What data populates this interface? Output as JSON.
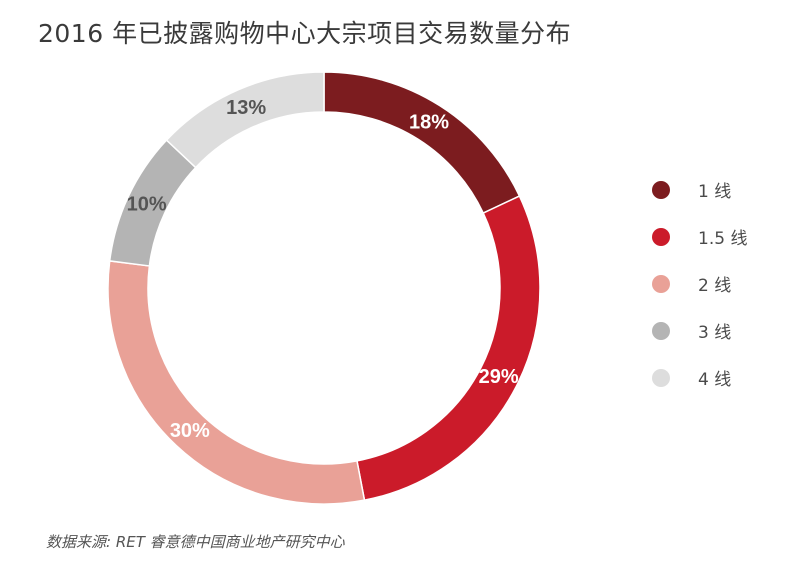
{
  "title": "2016 年已披露购物中心大宗项目交易数量分布",
  "source": "数据来源: RET 睿意德中国商业地产研究中心",
  "chart_data": {
    "type": "pie",
    "variant": "donut",
    "title": "2016 年已披露购物中心大宗项目交易数量分布",
    "legend_position": "right",
    "categories": [
      "1 线",
      "1.5 线",
      "2 线",
      "3 线",
      "4 线"
    ],
    "values": [
      18,
      29,
      30,
      10,
      13
    ],
    "unit": "%",
    "labels": [
      "18%",
      "29%",
      "30%",
      "10%",
      "13%"
    ],
    "colors": [
      "#7c1c1f",
      "#cb1b2a",
      "#e9a197",
      "#b4b4b4",
      "#dddddd"
    ],
    "label_colors": [
      "#ffffff",
      "#ffffff",
      "#ffffff",
      "#555555",
      "#555555"
    ]
  }
}
